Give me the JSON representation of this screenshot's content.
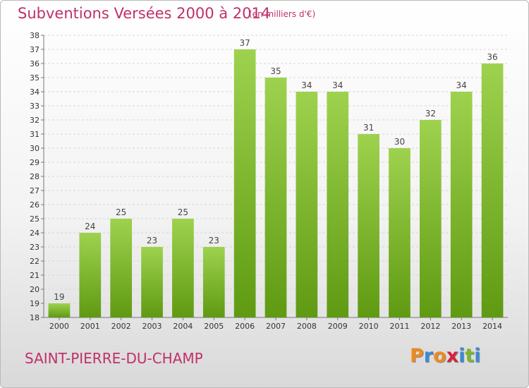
{
  "header": {
    "title": "Subventions Versées 2000 à 2014",
    "unit": "(en milliers d'€)"
  },
  "footer": {
    "commune": "SAINT-PIERRE-DU-CHAMP",
    "brand_letters": [
      "P",
      "r",
      "o",
      "x",
      "i",
      "t",
      "i"
    ],
    "brand_colors": [
      "#f08a1c",
      "#3a8ad8",
      "#f08a1c",
      "#d8203a",
      "#3a8ad8",
      "#7ab82a",
      "#3a8ad8"
    ]
  },
  "colors": {
    "bar_top": "#9ed24e",
    "bar_bottom": "#5f9a12",
    "grid": "#d6d6d6",
    "accent": "#c0306a"
  },
  "chart_data": {
    "type": "bar",
    "title": "Subventions Versées 2000 à 2014",
    "subtitle": "(en milliers d'€)",
    "categories": [
      "2000",
      "2001",
      "2002",
      "2003",
      "2004",
      "2005",
      "2006",
      "2007",
      "2008",
      "2009",
      "2010",
      "2011",
      "2012",
      "2013",
      "2014"
    ],
    "values": [
      19,
      24,
      25,
      23,
      25,
      23,
      37,
      35,
      34,
      34,
      31,
      30,
      32,
      34,
      36
    ],
    "ylim": [
      18,
      38
    ],
    "yticks": [
      18,
      19,
      20,
      21,
      22,
      23,
      24,
      25,
      26,
      27,
      28,
      29,
      30,
      31,
      32,
      33,
      34,
      35,
      36,
      37,
      38
    ],
    "grid": true,
    "data_labels": true
  }
}
